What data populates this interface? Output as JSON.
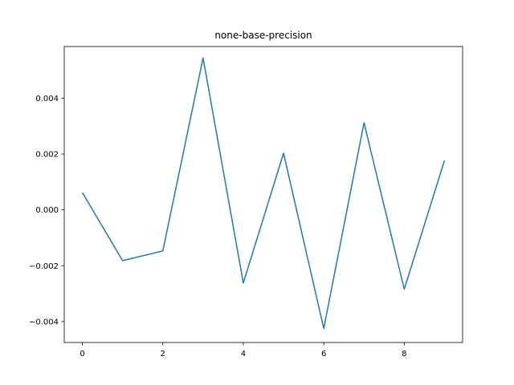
{
  "chart_data": {
    "type": "line",
    "title": "none-base-precision",
    "xlabel": "",
    "ylabel": "",
    "x": [
      0,
      1,
      2,
      3,
      4,
      5,
      6,
      7,
      8,
      9
    ],
    "series": [
      {
        "values": [
          0.00062,
          -0.00182,
          -0.00147,
          0.00544,
          -0.00262,
          0.00203,
          -0.00425,
          0.00312,
          -0.00284,
          0.00177
        ],
        "color": "#1f77b4"
      }
    ],
    "xlim": [
      -0.45,
      9.45
    ],
    "ylim": [
      -0.00475,
      0.00585
    ],
    "xticks": [
      0,
      2,
      4,
      6,
      8
    ],
    "xtick_labels": [
      "0",
      "2",
      "4",
      "6",
      "8"
    ],
    "yticks": [
      -0.004,
      -0.002,
      0.0,
      0.002,
      0.004
    ],
    "ytick_labels": [
      "−0.004",
      "−0.002",
      "0.000",
      "0.002",
      "0.004"
    ],
    "grid": false,
    "legend": false
  }
}
